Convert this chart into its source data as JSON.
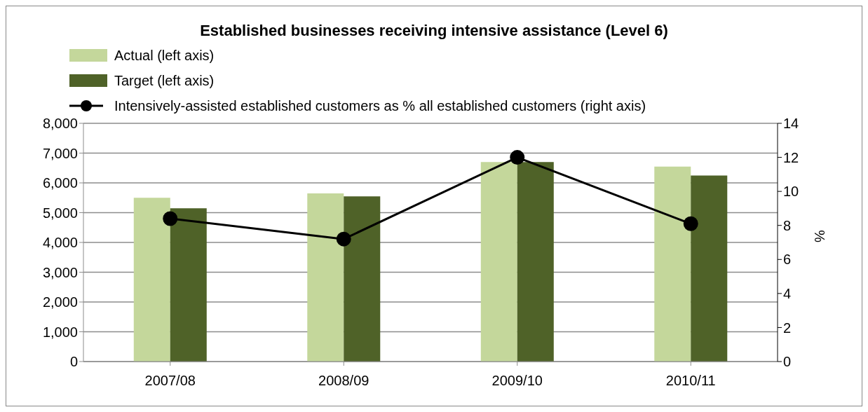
{
  "chart_data": {
    "type": "bar",
    "title": "Established businesses receiving intensive assistance (Level 6)",
    "categories": [
      "2007/08",
      "2008/09",
      "2009/10",
      "2010/11"
    ],
    "series": [
      {
        "name": "Actual (left axis)",
        "color": "#c4d79b",
        "values": [
          5500,
          5650,
          6700,
          6550
        ]
      },
      {
        "name": "Target (left axis)",
        "color": "#4f6228",
        "values": [
          5150,
          5550,
          6700,
          6250
        ]
      },
      {
        "name": "Intensively-assisted established customers as % all established customers (right axis)",
        "type": "line",
        "axis": "y2",
        "color": "#000000",
        "values": [
          8.4,
          7.2,
          12.0,
          8.1
        ]
      }
    ],
    "ylim": [
      0,
      8000
    ],
    "yticks": [
      {
        "value": 0,
        "label": "0"
      },
      {
        "value": 1000,
        "label": "1,000"
      },
      {
        "value": 2000,
        "label": "2,000"
      },
      {
        "value": 3000,
        "label": "3,000"
      },
      {
        "value": 4000,
        "label": "4,000"
      },
      {
        "value": 5000,
        "label": "5,000"
      },
      {
        "value": 6000,
        "label": "6,000"
      },
      {
        "value": 7000,
        "label": "7,000"
      },
      {
        "value": 8000,
        "label": "8,000"
      }
    ],
    "y2lim": [
      0,
      14
    ],
    "y2ticks": [
      0,
      2,
      4,
      6,
      8,
      10,
      12,
      14
    ],
    "y2label": "%",
    "grid": "y",
    "legend": "top left",
    "marker": "circle"
  }
}
